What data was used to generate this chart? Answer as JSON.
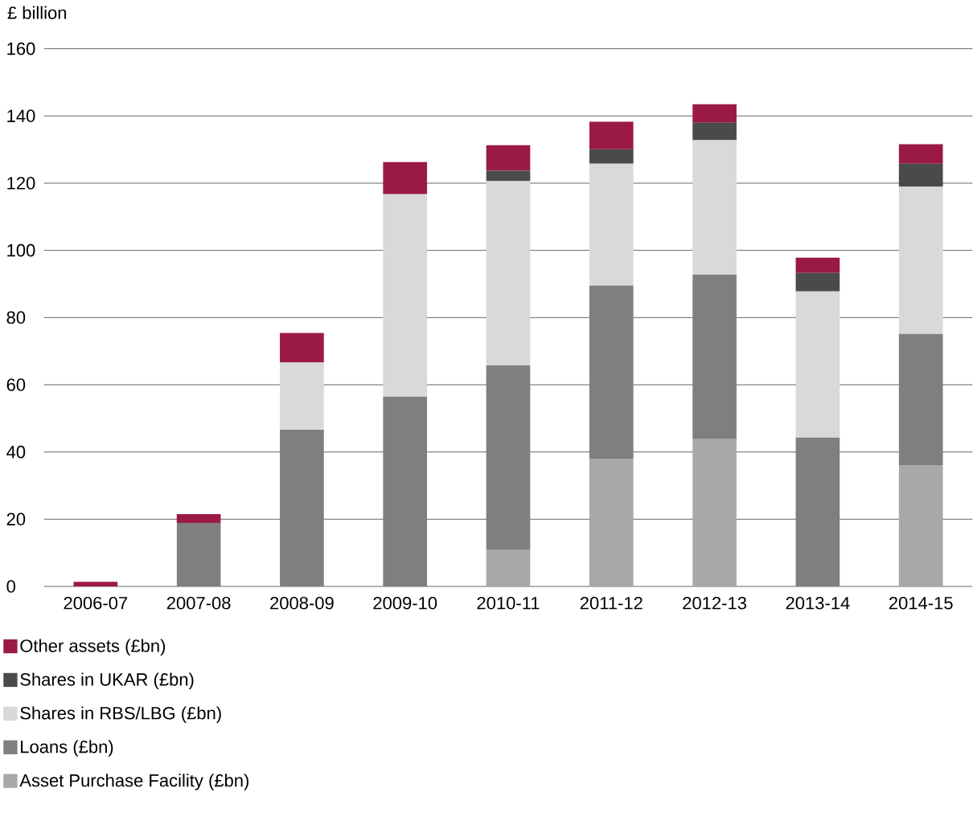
{
  "chart_data": {
    "type": "bar",
    "stacked": true,
    "ylabel": "£ billion",
    "categories": [
      "2006-07",
      "2007-08",
      "2008-09",
      "2009-10",
      "2010-11",
      "2011-12",
      "2012-13",
      "2013-14",
      "2014-15"
    ],
    "series": [
      {
        "name": "Asset Purchase Facility (£bn)",
        "color": "#a8a8a8",
        "values": [
          0,
          0,
          0,
          0,
          10.8,
          38.0,
          43.8,
          0,
          36.1
        ]
      },
      {
        "name": "Loans (£bn)",
        "color": "#7f7f7f",
        "values": [
          0,
          18.9,
          46.6,
          56.5,
          55.0,
          51.5,
          49.0,
          44.3,
          39.0
        ]
      },
      {
        "name": "Shares in RBS/LBG (£bn)",
        "color": "#d9d9d9",
        "values": [
          0,
          0,
          20.1,
          60.2,
          54.8,
          36.3,
          40.0,
          43.5,
          43.8
        ]
      },
      {
        "name": "Shares in UKAR (£bn)",
        "color": "#4a4a4a",
        "values": [
          0,
          0,
          0,
          0,
          3.1,
          4.3,
          5.2,
          5.5,
          6.9
        ]
      },
      {
        "name": "Other assets (£bn)",
        "color": "#9b1a44",
        "values": [
          1.4,
          2.6,
          8.7,
          9.6,
          7.6,
          8.2,
          5.5,
          4.5,
          5.8
        ]
      }
    ],
    "ylim": [
      0,
      160
    ],
    "yticks": [
      0,
      20,
      40,
      60,
      80,
      100,
      120,
      140,
      160
    ],
    "grid": "y",
    "legend": "bottom"
  }
}
